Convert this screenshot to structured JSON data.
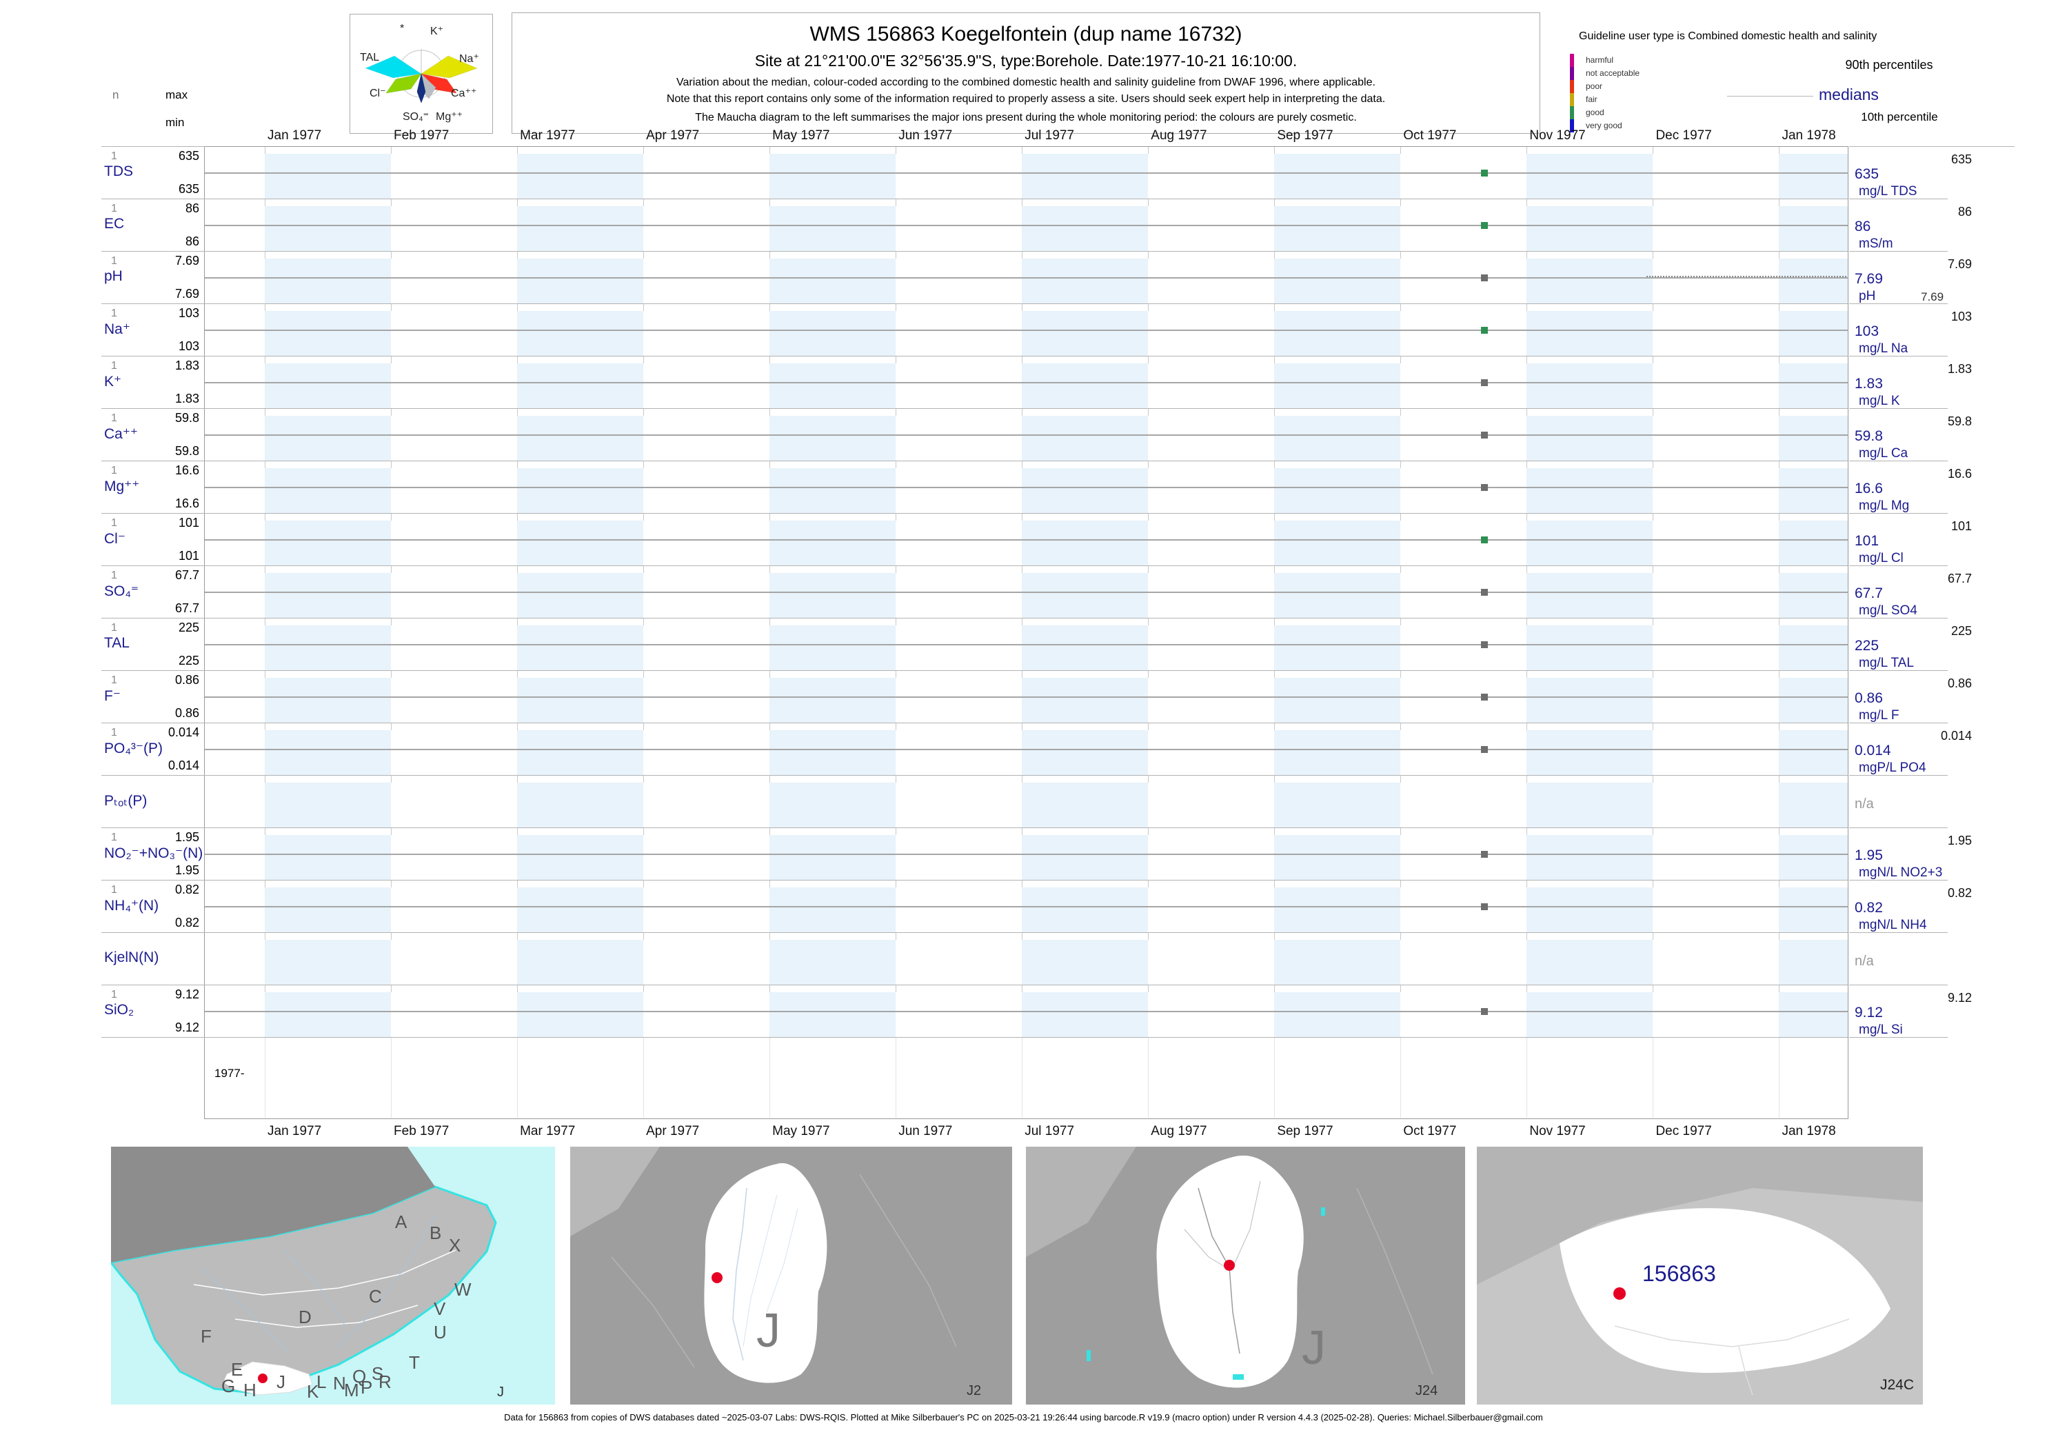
{
  "stats_legend": {
    "n": "n",
    "max": "max",
    "min": "min"
  },
  "maucha": {
    "ions": [
      "*",
      "K⁺",
      "TAL",
      "Na⁺",
      "Cl⁻",
      "Ca⁺⁺",
      "SO₄⁼",
      "Mg⁺⁺"
    ],
    "wedge_colors": {
      "tal": "#00dff0",
      "na": "#e3e300",
      "cl": "#8fd400",
      "ca": "#ff3020",
      "so4": "#14307e",
      "mg": "#b9bdc2"
    }
  },
  "title_block": {
    "line1": "WMS 156863  Koegelfontein (dup name 16732)",
    "line2": "Site at 21°21'00.0\"E 32°56'35.9\"S, type:Borehole. Date:1977-10-21 16:10:00.",
    "note1": "Variation about the median,  colour-coded according to the combined domestic health and salinity guideline from DWAF 1996, where applicable.",
    "note2": "Note that this report contains only some of the information required to properly assess a site. Users should seek expert help in interpreting the data.",
    "note3": "The Maucha diagram to the left summarises the major ions present during the whole monitoring period: the colours are purely cosmetic."
  },
  "guideline_legend": {
    "title": "Guideline user type is Combined domestic health and salinity",
    "categories": [
      {
        "label": "harmful",
        "color": "#cc0088"
      },
      {
        "label": "not acceptable",
        "color": "#7b0099"
      },
      {
        "label": "poor",
        "color": "#e63312"
      },
      {
        "label": "fair",
        "color": "#c9a80b"
      },
      {
        "label": "good",
        "color": "#2e8f52"
      },
      {
        "label": "very good",
        "color": "#1414c8"
      }
    ],
    "p90_label": "90th percentiles",
    "median_label": "medians",
    "p10_label": "10th percentile"
  },
  "axis": {
    "months": [
      "Jan 1977",
      "Feb 1977",
      "Mar 1977",
      "Apr 1977",
      "May 1977",
      "Jun 1977",
      "Jul 1977",
      "Aug 1977",
      "Sep 1977",
      "Oct 1977",
      "Nov 1977",
      "Dec 1977",
      "Jan 1978"
    ],
    "start_note": "1977-",
    "shaded_band_color": "#e8f3fb"
  },
  "chart_data": {
    "type": "scatter",
    "x_range": "Jan 1977 to Jan 1978",
    "sample_date": "1977-10-21",
    "marker_colors": {
      "good": "#2e8f52",
      "none": "#6e6e6e"
    },
    "rows": [
      {
        "param": "TDS",
        "n": "1",
        "max": "635",
        "min": "635",
        "p90": "635",
        "median": "635",
        "unit": "mg/L TDS",
        "status": "good"
      },
      {
        "param": "EC",
        "n": "1",
        "max": "86",
        "min": "86",
        "p90": "86",
        "median": "86",
        "unit": "mS/m",
        "status": "good"
      },
      {
        "param": "pH",
        "n": "1",
        "max": "7.69",
        "min": "7.69",
        "p90": "7.69",
        "median": "7.69",
        "p10": "7.69",
        "unit": "pH",
        "status": "none"
      },
      {
        "param": "Na⁺",
        "n": "1",
        "max": "103",
        "min": "103",
        "p90": "103",
        "median": "103",
        "unit": "mg/L Na",
        "status": "good"
      },
      {
        "param": "K⁺",
        "n": "1",
        "max": "1.83",
        "min": "1.83",
        "p90": "1.83",
        "median": "1.83",
        "unit": "mg/L K",
        "status": "none"
      },
      {
        "param": "Ca⁺⁺",
        "n": "1",
        "max": "59.8",
        "min": "59.8",
        "p90": "59.8",
        "median": "59.8",
        "unit": "mg/L Ca",
        "status": "none"
      },
      {
        "param": "Mg⁺⁺",
        "n": "1",
        "max": "16.6",
        "min": "16.6",
        "p90": "16.6",
        "median": "16.6",
        "unit": "mg/L Mg",
        "status": "none"
      },
      {
        "param": "Cl⁻",
        "n": "1",
        "max": "101",
        "min": "101",
        "p90": "101",
        "median": "101",
        "unit": "mg/L Cl",
        "status": "good"
      },
      {
        "param": "SO₄⁼",
        "n": "1",
        "max": "67.7",
        "min": "67.7",
        "p90": "67.7",
        "median": "67.7",
        "unit": "mg/L SO4",
        "status": "none"
      },
      {
        "param": "TAL",
        "n": "1",
        "max": "225",
        "min": "225",
        "p90": "225",
        "median": "225",
        "unit": "mg/L TAL",
        "status": "none"
      },
      {
        "param": "F⁻",
        "n": "1",
        "max": "0.86",
        "min": "0.86",
        "p90": "0.86",
        "median": "0.86",
        "unit": "mg/L F",
        "status": "none"
      },
      {
        "param": "PO₄³⁻(P)",
        "n": "1",
        "max": "0.014",
        "min": "0.014",
        "p90": "0.014",
        "median": "0.014",
        "unit": "mgP/L PO4",
        "status": "none"
      },
      {
        "param": "Pₜₒₜ(P)",
        "na": "n/a"
      },
      {
        "param": "NO₂⁻+NO₃⁻(N)",
        "n": "1",
        "max": "1.95",
        "min": "1.95",
        "p90": "1.95",
        "median": "1.95",
        "unit": "mgN/L NO2+3",
        "status": "none"
      },
      {
        "param": "NH₄⁺(N)",
        "n": "1",
        "max": "0.82",
        "min": "0.82",
        "p90": "0.82",
        "median": "0.82",
        "unit": "mgN/L NH4",
        "status": "none"
      },
      {
        "param": "KjelN(N)",
        "na": "n/a"
      },
      {
        "param": "SiO₂",
        "n": "1",
        "max": "9.12",
        "min": "9.12",
        "p90": "9.12",
        "median": "9.12",
        "unit": "mg/L Si",
        "status": "none"
      }
    ]
  },
  "maps": {
    "panels": [
      {
        "corner_label": "J",
        "letters": [
          "A",
          "B",
          "X",
          "C",
          "W",
          "D",
          "V",
          "U",
          "F",
          "E",
          "T",
          "Q",
          "S",
          "L",
          "N",
          "R",
          "M",
          "P",
          "G",
          "H",
          "J",
          "K"
        ]
      },
      {
        "corner_label": "J2",
        "region_label": "J"
      },
      {
        "corner_label": "J24",
        "region_label": "J"
      },
      {
        "corner_label": "J24C",
        "site_label": "156863"
      }
    ]
  },
  "footer": "Data for 156863 from copies of DWS databases dated ~2025-03-07 Labs: DWS-RQIS. Plotted at Mike Silberbauer's PC on 2025-03-21 19:26:44 using barcode.R v19.9 (macro option) under R version 4.4.3 (2025-02-28). Queries: Michael.Silberbauer@gmail.com"
}
